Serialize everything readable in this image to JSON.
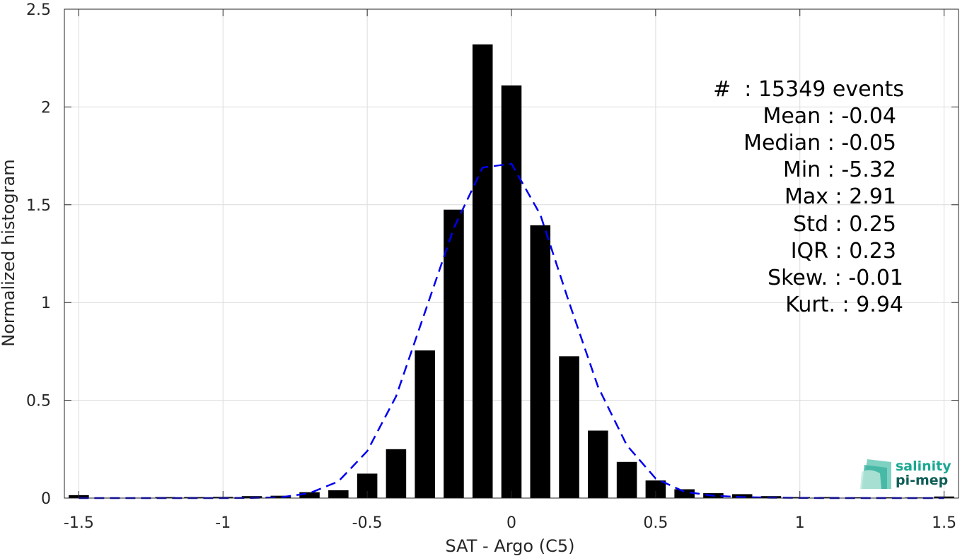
{
  "chart_data": {
    "type": "bar",
    "xlabel": "SAT - Argo (C5)",
    "ylabel": "Normalized histogram",
    "xlim": [
      -1.55,
      1.55
    ],
    "ylim": [
      0,
      2.5
    ],
    "xticks": [
      -1.5,
      -1,
      -0.5,
      0,
      0.5,
      1,
      1.5
    ],
    "xtick_labels": [
      "-1.5",
      "-1",
      "-0.5",
      "0",
      "0.5",
      "1",
      "1.5"
    ],
    "yticks": [
      0,
      0.5,
      1,
      1.5,
      2,
      2.5
    ],
    "ytick_labels": [
      "0",
      "0.5",
      "1",
      "1.5",
      "2",
      "2.5"
    ],
    "grid": true,
    "bar_width": 0.07,
    "series": [
      {
        "kind": "bar",
        "color": "#000000",
        "x": [
          -1.5,
          -1.4,
          -1.3,
          -1.2,
          -1.1,
          -1.0,
          -0.9,
          -0.8,
          -0.7,
          -0.6,
          -0.5,
          -0.4,
          -0.3,
          -0.2,
          -0.1,
          0.0,
          0.1,
          0.2,
          0.3,
          0.4,
          0.5,
          0.6,
          0.7,
          0.8,
          0.9,
          1.0,
          1.1,
          1.2,
          1.3,
          1.4,
          1.5
        ],
        "values": [
          0.015,
          0.002,
          0.002,
          0.005,
          0.005,
          0.006,
          0.01,
          0.012,
          0.03,
          0.04,
          0.125,
          0.25,
          0.755,
          1.475,
          2.32,
          2.11,
          1.395,
          0.725,
          0.345,
          0.185,
          0.09,
          0.045,
          0.025,
          0.02,
          0.01,
          0.005,
          0.005,
          0.004,
          0.004,
          0.003,
          0.008
        ]
      },
      {
        "kind": "line",
        "style": "dashed",
        "color": "#0000ee",
        "x": [
          -1.5,
          -1.4,
          -1.3,
          -1.2,
          -1.1,
          -1.0,
          -0.9,
          -0.8,
          -0.7,
          -0.6,
          -0.5,
          -0.4,
          -0.3,
          -0.2,
          -0.1,
          0.0,
          0.1,
          0.2,
          0.3,
          0.4,
          0.5,
          0.6,
          0.7,
          0.8,
          0.9,
          1.0,
          1.1,
          1.2,
          1.3,
          1.4,
          1.5
        ],
        "values": [
          0.0,
          0.0,
          0.0,
          0.0,
          0.0,
          0.0,
          0.001,
          0.004,
          0.025,
          0.085,
          0.24,
          0.52,
          0.95,
          1.38,
          1.69,
          1.71,
          1.45,
          1.0,
          0.57,
          0.27,
          0.1,
          0.032,
          0.012,
          0.005,
          0.002,
          0.001,
          0.0,
          0.0,
          0.0,
          0.0,
          0.0
        ]
      }
    ],
    "annotations": [
      "#  : 15349 events",
      "Mean : -0.04",
      "Median : -0.05",
      "Min : -5.32",
      "Max : 2.91",
      "Std : 0.25",
      "IQR : 0.23",
      "Skew. : -0.01",
      "Kurt. : 9.94"
    ]
  },
  "logo": {
    "line1": "salinity",
    "line2": "pi-mep",
    "color_top": "#1aa892",
    "color_bottom": "#0f5e57"
  }
}
